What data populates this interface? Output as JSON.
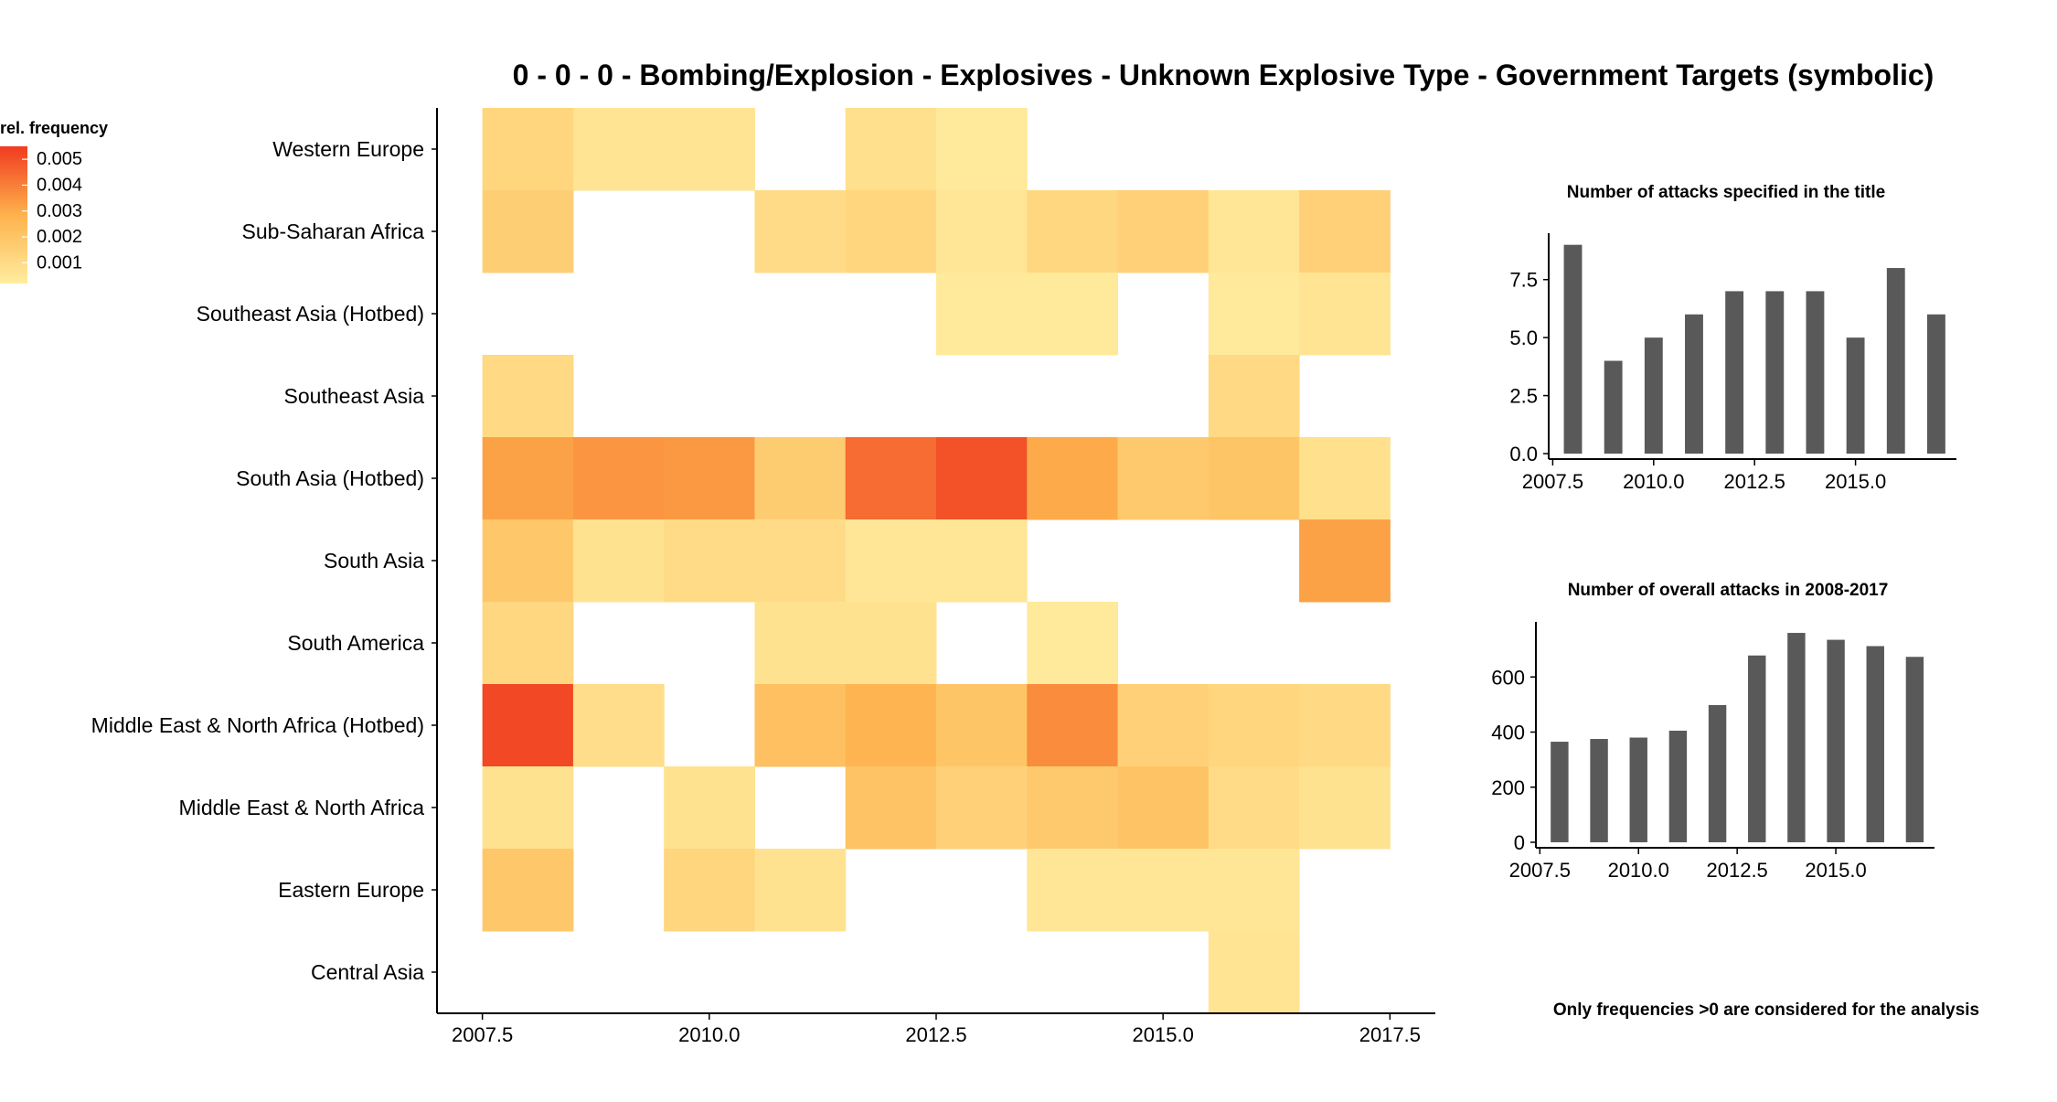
{
  "title": "0 - 0 - 0 - Bombing/Explosion - Explosives - Unknown Explosive Type - Government Targets (symbolic)",
  "note": "Only frequencies >0 are considered for the analysis",
  "legend": {
    "title": "rel. frequency",
    "labels": [
      "0.005",
      "0.004",
      "0.003",
      "0.002",
      "0.001"
    ],
    "values": [
      0.005,
      0.004,
      0.003,
      0.002,
      0.001
    ],
    "color_low": "#FFEDA0",
    "color_high": "#F03B20",
    "placement": "top-left"
  },
  "chart_data": [
    {
      "type": "heatmap",
      "title": "0 - 0 - 0 - Bombing/Explosion - Explosives - Unknown Explosive Type - Government Targets (symbolic)",
      "x": [
        2008,
        2009,
        2010,
        2011,
        2012,
        2013,
        2014,
        2015,
        2016,
        2017
      ],
      "x_ticks": [
        2007.5,
        2010.0,
        2012.5,
        2015.0,
        2017.5
      ],
      "x_tick_labels": [
        "2007.5",
        "2010.0",
        "2012.5",
        "2015.0",
        "2017.5"
      ],
      "xlim": [
        2007.5,
        2017.5
      ],
      "categories": [
        "Western Europe",
        "Sub-Saharan Africa",
        "Southeast Asia (Hotbed)",
        "Southeast Asia",
        "South Asia (Hotbed)",
        "South Asia",
        "South America",
        "Middle East & North Africa (Hotbed)",
        "Middle East & North Africa",
        "Eastern Europe",
        "Central Asia"
      ],
      "values": [
        [
          0.0013,
          0.0006,
          0.0006,
          null,
          0.0008,
          0.0004,
          null,
          null,
          null,
          null
        ],
        [
          0.0016,
          null,
          null,
          0.001,
          0.0013,
          0.0005,
          0.0012,
          0.0015,
          0.0005,
          0.0015
        ],
        [
          null,
          null,
          null,
          null,
          null,
          0.0004,
          0.0004,
          null,
          0.0004,
          0.0006
        ],
        [
          0.0011,
          null,
          null,
          null,
          null,
          null,
          null,
          null,
          0.0011,
          null
        ],
        [
          0.0032,
          0.0035,
          0.0034,
          0.0017,
          0.0044,
          0.005,
          0.003,
          0.0018,
          0.002,
          0.0008
        ],
        [
          0.0019,
          0.0007,
          0.001,
          0.001,
          0.0005,
          0.0005,
          null,
          null,
          null,
          0.0032
        ],
        [
          0.0012,
          null,
          null,
          0.0007,
          0.0007,
          null,
          0.0004,
          null,
          null,
          null
        ],
        [
          0.0052,
          0.0009,
          null,
          0.0022,
          0.0027,
          0.002,
          0.0037,
          0.0015,
          0.0013,
          0.0011
        ],
        [
          0.0007,
          null,
          0.0007,
          null,
          0.0021,
          0.0015,
          0.0018,
          0.0021,
          0.001,
          0.0007
        ],
        [
          0.0019,
          null,
          0.0013,
          0.0007,
          null,
          null,
          0.0005,
          0.0005,
          0.0005,
          null
        ],
        [
          null,
          null,
          null,
          null,
          null,
          null,
          null,
          null,
          0.0006,
          null
        ]
      ],
      "grid": false
    },
    {
      "type": "bar",
      "title": "Number of attacks specified in the title",
      "x": [
        2008,
        2009,
        2010,
        2011,
        2012,
        2013,
        2014,
        2015,
        2016,
        2017
      ],
      "values": [
        9,
        4,
        5,
        6,
        7,
        7,
        7,
        5,
        8,
        6
      ],
      "x_ticks": [
        2007.5,
        2010.0,
        2012.5,
        2015.0
      ],
      "x_tick_labels": [
        "2007.5",
        "2010.0",
        "2012.5",
        "2015.0"
      ],
      "y_ticks": [
        0,
        2.5,
        5,
        7.5
      ],
      "y_tick_labels": [
        "0.0",
        "2.5",
        "5.0",
        "7.5"
      ],
      "ylim": [
        0,
        9.5
      ],
      "grid": false
    },
    {
      "type": "bar",
      "title": "Number of overall attacks in 2008-2017",
      "x": [
        2008,
        2009,
        2010,
        2011,
        2012,
        2013,
        2014,
        2015,
        2016,
        2017
      ],
      "values": [
        365,
        375,
        380,
        405,
        498,
        678,
        760,
        735,
        712,
        673
      ],
      "x_ticks": [
        2007.5,
        2010.0,
        2012.5,
        2015.0
      ],
      "x_tick_labels": [
        "2007.5",
        "2010.0",
        "2012.5",
        "2015.0"
      ],
      "y_ticks": [
        0,
        200,
        400,
        600
      ],
      "y_tick_labels": [
        "0",
        "200",
        "400",
        "600"
      ],
      "ylim": [
        0,
        800
      ],
      "grid": false
    }
  ],
  "colors": {
    "bar": "#595959",
    "axis": "#000000"
  }
}
